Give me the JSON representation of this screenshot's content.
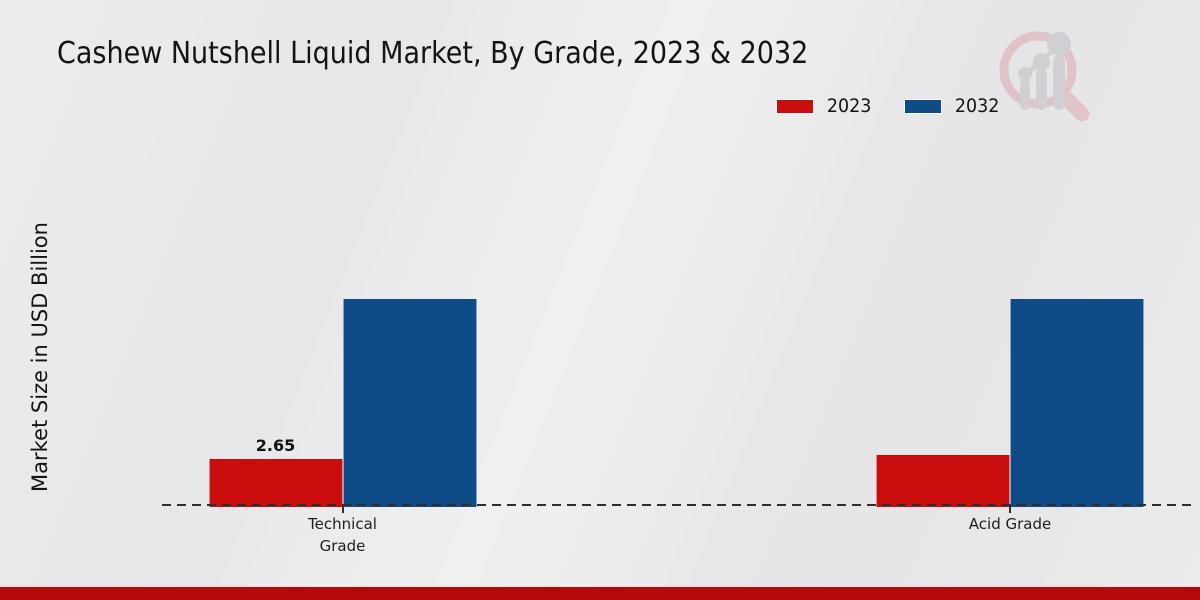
{
  "page": {
    "background_color": "#e9e9ea",
    "footer_bar_color": "#b60909",
    "watermark_icon": "magnifier-bar-chart-logo"
  },
  "chart_data": {
    "type": "bar",
    "title": "Cashew Nutshell Liquid Market, By Grade, 2023 & 2032",
    "ylabel": "Market Size in USD Billion",
    "xlabel": "",
    "categories": [
      "Technical\nGrade",
      "Acid Grade"
    ],
    "series": [
      {
        "name": "2023",
        "color": "#c90d0d",
        "values": [
          2.65,
          2.9
        ],
        "data_labels": [
          "2.65",
          ""
        ]
      },
      {
        "name": "2032",
        "color": "#0f4c87",
        "values": [
          11.5,
          11.5
        ],
        "data_labels": [
          "",
          ""
        ]
      }
    ],
    "ylim": [
      0,
      12.3
    ],
    "grid": false,
    "legend_position": "top-right",
    "baseline_style": "dashed",
    "axis_color": "#2e2e2e"
  }
}
